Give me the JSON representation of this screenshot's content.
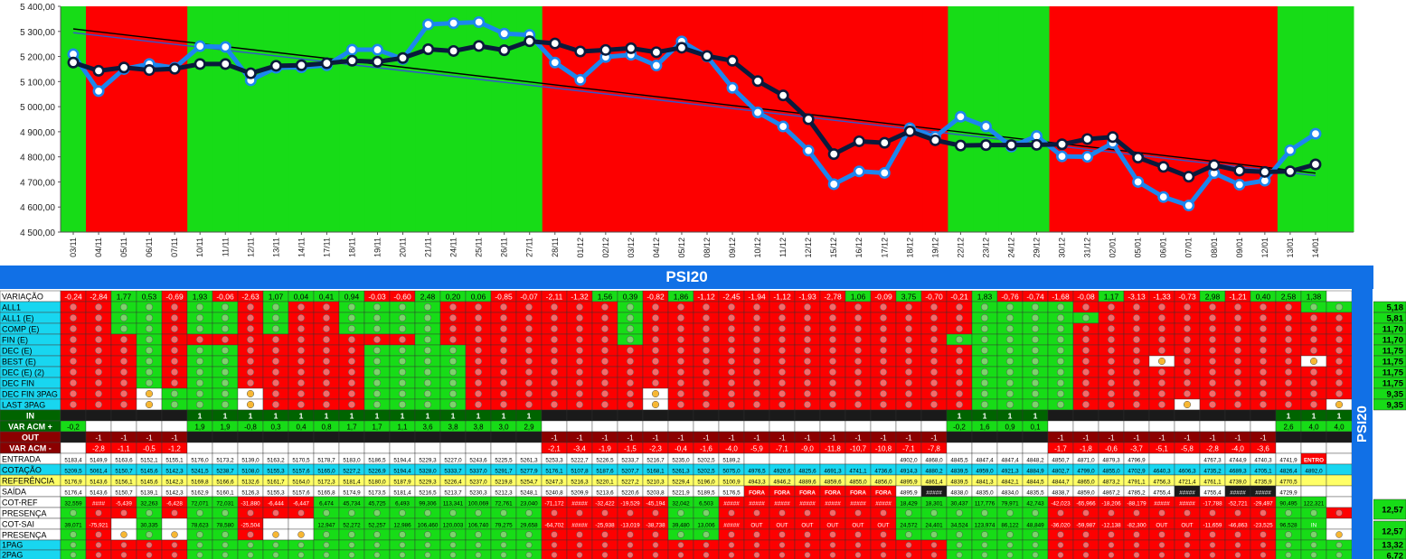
{
  "chart_data": {
    "type": "line",
    "yticks": [
      "5 400,00",
      "5 300,00",
      "5 200,00",
      "5 100,00",
      "5 000,00",
      "4 900,00",
      "4 800,00",
      "4 700,00",
      "4 600,00",
      "4 500,00"
    ],
    "ylim": [
      4500,
      5400
    ],
    "x": [
      "03/11",
      "04/11",
      "05/11",
      "06/11",
      "07/11",
      "10/11",
      "11/11",
      "12/11",
      "13/11",
      "14/11",
      "17/11",
      "18/11",
      "19/11",
      "20/11",
      "21/11",
      "24/11",
      "25/11",
      "26/11",
      "27/11",
      "28/11",
      "01/12",
      "02/12",
      "03/12",
      "04/12",
      "05/12",
      "08/12",
      "09/12",
      "10/12",
      "11/12",
      "12/12",
      "15/12",
      "16/12",
      "17/12",
      "18/12",
      "19/12",
      "22/12",
      "23/12",
      "24/12",
      "29/12",
      "30/12",
      "31/12",
      "02/01",
      "05/01",
      "06/01",
      "07/01",
      "08/01",
      "09/01",
      "12/01",
      "13/01",
      "14/01"
    ],
    "bands": [
      "g",
      "r",
      "r",
      "r",
      "r",
      "g",
      "g",
      "g",
      "g",
      "g",
      "g",
      "g",
      "g",
      "g",
      "g",
      "g",
      "g",
      "g",
      "g",
      "r",
      "r",
      "r",
      "r",
      "r",
      "r",
      "r",
      "r",
      "r",
      "r",
      "r",
      "r",
      "r",
      "r",
      "r",
      "r",
      "g",
      "g",
      "g",
      "g",
      "r",
      "r",
      "r",
      "r",
      "r",
      "r",
      "r",
      "r",
      "r",
      "g",
      "g",
      "g"
    ],
    "band_colors": {
      "g": "#17dc17",
      "r": "#fd0000"
    },
    "series": [
      {
        "color": "#1c86ee",
        "values": [
          5209,
          5062,
          5150,
          5170,
          5155,
          5241,
          5238,
          5105,
          5155,
          5157,
          5165,
          5227,
          5227,
          5190,
          5328,
          5333,
          5337,
          5291,
          5286,
          5176,
          5107,
          5198,
          5207,
          5164,
          5260,
          5200,
          5075,
          4977,
          4921,
          4825,
          4691,
          4742,
          4736,
          4914,
          4880,
          4960,
          4921,
          4841,
          4883,
          4802,
          4800,
          4855,
          4700,
          4640,
          4606,
          4735,
          4689,
          4705,
          4826,
          4892
        ]
      },
      {
        "color": "#0a1a3c",
        "values": [
          5176,
          5143,
          5156,
          5146,
          5151,
          5170,
          5170,
          5133,
          5163,
          5165,
          5173,
          5183,
          5179,
          5194,
          5229,
          5222,
          5242,
          5225,
          5261,
          5252,
          5220,
          5226,
          5233,
          5217,
          5235,
          5202,
          5183,
          5102,
          5045,
          4950,
          4811,
          4862,
          4856,
          4902,
          4866,
          4845,
          4847,
          4847,
          4848,
          4850,
          4871,
          4879,
          4797,
          4760,
          4721,
          4767,
          4745,
          4740,
          4742,
          4770
        ]
      }
    ],
    "trendlines": [
      {
        "color": "#000000",
        "from": 5310,
        "to": 4735
      },
      {
        "color": "#3355cc",
        "from": 5295,
        "to": 4725
      }
    ]
  },
  "table": {
    "title": "PSI20",
    "side_label": "PSI20",
    "variacao": [
      "-0,24",
      "-2,84",
      "1,77",
      "0,53",
      "-0,69",
      "1,93",
      "-0,06",
      "-2,63",
      "1,07",
      "0,04",
      "0,41",
      "0,94",
      "-0,03",
      "-0,60",
      "2,48",
      "0,20",
      "0,06",
      "-0,85",
      "-0,07",
      "-2,11",
      "-1,32",
      "1,56",
      "0,39",
      "-0,82",
      "1,86",
      "-1,12",
      "-2,45",
      "-1,94",
      "-1,12",
      "-1,93",
      "-2,78",
      "1,06",
      "-0,09",
      "3,75",
      "-0,70",
      "-0,21",
      "1,83",
      "-0,76",
      "-0,74",
      "-1,68",
      "-0,08",
      "1,17",
      "-3,13",
      "-1,33",
      "-0,73",
      "2,98",
      "-1,21",
      "0,40",
      "2,58",
      "1,38",
      ""
    ],
    "row_labels": [
      "VARIAÇÃO",
      "ALL1",
      "ALL1 (E)",
      "COMP (E)",
      "FIN (E)",
      "DEC (E)",
      "BEST (E)",
      "DEC (E) (2)",
      "DEC FIN",
      "DEC FIN 3PAG",
      "LAST 3PAG",
      "IN",
      "VAR ACM +",
      "OUT",
      "VAR ACM -",
      "ENTRADA",
      "COTAÇÃO",
      "REFERÊNCIA",
      "SAÍDA",
      "COT-REF",
      "PRESENÇA",
      "COT-SAI",
      "PRESENÇA",
      "1PAG",
      "2PAG"
    ],
    "right_values": [
      "5,18",
      "5,81",
      "11,70",
      "11,70",
      "11,75",
      "11,75",
      "11,75",
      "11,75",
      "9,35",
      "9,35",
      "12,57",
      "12,57",
      "13,32",
      "6,72"
    ],
    "in_row": [
      "",
      "",
      "",
      "",
      "",
      "1",
      "1",
      "1",
      "1",
      "1",
      "1",
      "1",
      "1",
      "1",
      "1",
      "1",
      "1",
      "1",
      "1",
      "",
      "",
      "",
      "",
      "",
      "",
      "",
      "",
      "",
      "",
      "",
      "",
      "",
      "",
      "",
      "",
      "1",
      "1",
      "1",
      "1",
      "",
      "",
      "",
      "",
      "",
      "",
      "",
      "",
      "",
      "1",
      "1",
      "1"
    ],
    "var_acm_plus": [
      "-0,2",
      "",
      "",
      "",
      "",
      "1,9",
      "1,9",
      "-0,8",
      "0,3",
      "0,4",
      "0,8",
      "1,7",
      "1,7",
      "1,1",
      "3,6",
      "3,8",
      "3,8",
      "3,0",
      "2,9",
      "",
      "",
      "",
      "",
      "",
      "",
      "",
      "",
      "",
      "",
      "",
      "",
      "",
      "",
      "",
      "",
      "-0,2",
      "1,6",
      "0,9",
      "0,1",
      "",
      "",
      "",
      "",
      "",
      "",
      "",
      "",
      "",
      "2,6",
      "4,0",
      "4,0"
    ],
    "out_row": [
      "",
      "-1",
      "-1",
      "-1",
      "-1",
      "",
      "",
      "",
      "",
      "",
      "",
      "",
      "",
      "",
      "",
      "",
      "",
      "",
      "",
      "-1",
      "-1",
      "-1",
      "-1",
      "-1",
      "-1",
      "-1",
      "-1",
      "-1",
      "-1",
      "-1",
      "-1",
      "-1",
      "-1",
      "-1",
      "-1",
      "",
      "",
      "",
      "",
      "-1",
      "-1",
      "-1",
      "-1",
      "-1",
      "-1",
      "-1",
      "-1",
      "-1",
      "",
      "",
      ""
    ],
    "var_acm_minus": [
      "",
      "-2,8",
      "-1,1",
      "-0,5",
      "-1,2",
      "",
      "",
      "",
      "",
      "",
      "",
      "",
      "",
      "",
      "",
      "",
      "",
      "",
      "",
      "-2,1",
      "-3,4",
      "-1,9",
      "-1,5",
      "-2,3",
      "-0,4",
      "-1,6",
      "-4,0",
      "-5,9",
      "-7,1",
      "-9,0",
      "-11,8",
      "-10,7",
      "-10,8",
      "-7,1",
      "-7,8",
      "",
      "",
      "",
      "",
      "-1,7",
      "-1,8",
      "-0,6",
      "-3,7",
      "-5,1",
      "-5,8",
      "-2,8",
      "-4,0",
      "-3,6",
      "",
      "",
      ""
    ],
    "entrada": [
      "5183,4",
      "5149,9",
      "5163,6",
      "5152,1",
      "5155,1",
      "5176,0",
      "5173,2",
      "5139,0",
      "5163,2",
      "5170,5",
      "5178,7",
      "5183,0",
      "5186,5",
      "5194,4",
      "5229,3",
      "5227,0",
      "5243,6",
      "5225,5",
      "5261,3",
      "5253,3",
      "5222,7",
      "5226,5",
      "5233,7",
      "5216,7",
      "5235,0",
      "5202,5",
      "5189,2",
      "",
      "",
      "",
      "",
      "",
      "",
      "4902,0",
      "4868,0",
      "4845,5",
      "4847,4",
      "4847,4",
      "4848,2",
      "4850,7",
      "4871,0",
      "4879,3",
      "4796,9",
      "",
      "",
      "4767,3",
      "4744,9",
      "4740,3",
      "4741,9",
      "ENTRO",
      ""
    ],
    "cotacao": [
      "5209,5",
      "5061,4",
      "5150,7",
      "5145,6",
      "5142,3",
      "5241,5",
      "5238,7",
      "5108,0",
      "5155,3",
      "5157,6",
      "5165,0",
      "5227,2",
      "5226,9",
      "5194,4",
      "5328,0",
      "5333,7",
      "5337,0",
      "5291,7",
      "5277,9",
      "5176,1",
      "5107,8",
      "5187,6",
      "5207,7",
      "5168,1",
      "5261,3",
      "5202,5",
      "5075,0",
      "4976,5",
      "4920,6",
      "4825,6",
      "4691,3",
      "4741,1",
      "4736,6",
      "4914,3",
      "4880,2",
      "4839,5",
      "4959,0",
      "4921,3",
      "4884,9",
      "4802,7",
      "4799,0",
      "4855,0",
      "4702,9",
      "4640,3",
      "4606,3",
      "4735,2",
      "4689,3",
      "4705,1",
      "4826,4",
      "4892,0",
      ""
    ],
    "referencia": [
      "5176,9",
      "5143,6",
      "5156,1",
      "5145,6",
      "5142,3",
      "5169,8",
      "5166,6",
      "5132,6",
      "5161,7",
      "5164,0",
      "5172,3",
      "5181,4",
      "5180,0",
      "5187,9",
      "5229,3",
      "5226,4",
      "5237,0",
      "5219,8",
      "5254,7",
      "5247,3",
      "5216,3",
      "5220,1",
      "5227,2",
      "5210,3",
      "5229,4",
      "5196,0",
      "5100,9",
      "4943,3",
      "4946,2",
      "4889,6",
      "4859,6",
      "4855,0",
      "4856,0",
      "4895,9",
      "4861,4",
      "4839,5",
      "4841,3",
      "4842,1",
      "4844,5",
      "4844,7",
      "4865,0",
      "4873,2",
      "4791,1",
      "4756,3",
      "4721,4",
      "4761,1",
      "4739,0",
      "4735,9",
      "4770,5",
      "",
      ""
    ],
    "saida": [
      "5176,4",
      "5143,6",
      "5150,7",
      "5139,1",
      "5142,3",
      "5162,9",
      "5160,1",
      "5126,3",
      "5155,3",
      "5157,6",
      "5165,8",
      "5174,9",
      "5173,5",
      "5181,4",
      "5216,5",
      "5213,7",
      "5230,3",
      "5212,3",
      "5248,1",
      "5240,8",
      "5209,9",
      "5213,6",
      "5220,6",
      "5203,8",
      "5221,9",
      "5189,5",
      "5176,5",
      "FORA",
      "FORA",
      "FORA",
      "FORA",
      "FORA",
      "FORA",
      "4895,9",
      "#####",
      "4838,0",
      "4835,0",
      "4834,0",
      "4835,5",
      "4838,7",
      "4859,0",
      "4867,2",
      "4785,2",
      "4755,4",
      "#####",
      "4755,4",
      "#####",
      "#####",
      "4729,9",
      "",
      ""
    ],
    "cot_ref": [
      "32,559",
      "####",
      "-5,439",
      "32,263",
      "-6,428",
      "72,071",
      "72,031",
      "-31,880",
      "-6,444",
      "-6,447",
      "6,474",
      "45,734",
      "45,725",
      "6,493",
      "99,306",
      "113,341",
      "100,069",
      "72,761",
      "23,040",
      "-71,172",
      "#####",
      "-32,422",
      "-19,529",
      "-45,194",
      "32,042",
      "6,503",
      "#####",
      "#####",
      "#####",
      "#####",
      "#####",
      "#####",
      "#####",
      "18,429",
      "18,301",
      "30,437",
      "117,776",
      "79,971",
      "42,743",
      "-42,023",
      "-65,966",
      "-18,206",
      "-88,179",
      "#####",
      "#####",
      "-17,788",
      "-52,721",
      "-29,497",
      "90,495",
      "122,321",
      ""
    ],
    "cot_sai": [
      "39,071",
      "-75,921",
      "",
      "30,335",
      "",
      "78,623",
      "78,580",
      "-25,504",
      "",
      "",
      "12,947",
      "52,272",
      "52,257",
      "12,986",
      "106,460",
      "120,003",
      "106,740",
      "79,275",
      "29,658",
      "-64,702",
      "#####",
      "-25,938",
      "-13,019",
      "-38,738",
      "39,480",
      "13,006",
      "#####",
      "OUT",
      "OUT",
      "OUT",
      "OUT",
      "OUT",
      "OUT",
      "24,572",
      "24,401",
      "34,524",
      "123,974",
      "86,122",
      "48,849",
      "-36,020",
      "-59,987",
      "-12,138",
      "-82,300",
      "OUT",
      "OUT",
      "-11,659",
      "-46,863",
      "-23,525",
      "96,528",
      "IN",
      ""
    ],
    "grid": [
      "rrggrggrgrrggggrrrrrrrgrrrrrrrrrrrrrggggrrrrrrrrrggg",
      "rrggrggrgrrggggrrrrrrrgrrrrrrrrrrrrrgggggrrrrrrrrrrgg",
      "rrggrggrgrrggggrrrrrrrgrrrrrrrrrrrrrggggrrrrrrrrrrrgg",
      "rrrgrrrrrrrrrrgrrrrrrrgrrrrrrrrrrrrgggggrrrrrrrrrrrgg",
      "rrrgrggrrrrrggggrrrrrrrrrrrrrrrrrrrrggggrrrrrrrrrrrgg",
      "rrrgrggrrrrrggggrrrrrrrrrrrrrrrrrrrrggggrrryrrrrryrgg",
      "rrrgrggrrrrrggggrrrrrrrrrrrrrrrrrrrrggggrrrrrrrrrrrgg",
      "rrrgrggrrrrrggggrrrrrrrrrrrrrrrrrrrrggggrrrrrrrrrrrgg",
      "rrrygggyrrrrggggrrrrrrryrrrrrrrrrrrrggggrrrrrrrrrrrgg",
      "rrrygggyrrrrggggrrrrrrryrrrrrrrrrrrrggggrrrryrrrrrygg"
    ]
  }
}
